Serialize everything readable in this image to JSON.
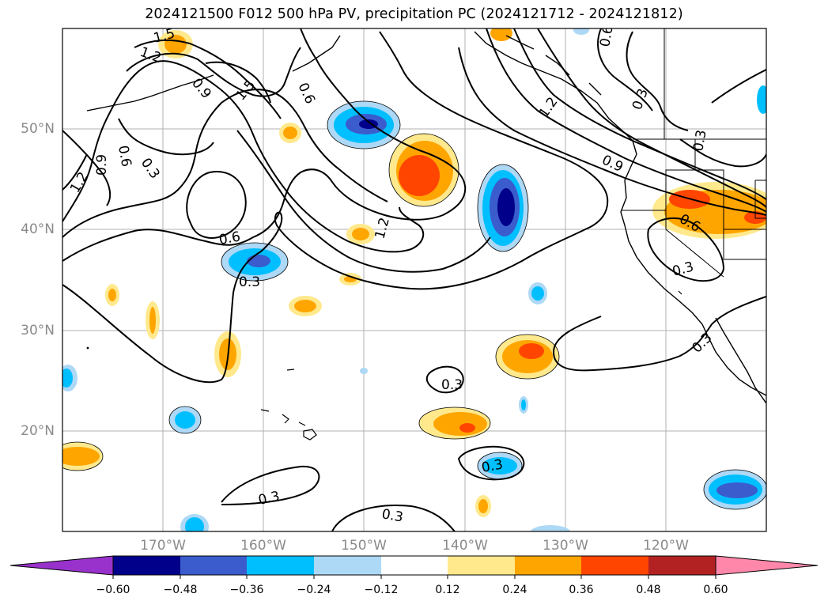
{
  "title": "2024121500 F012 500 hPa PV, precipitation PC (2024121712 - 2024121812)",
  "map": {
    "lon_labels": [
      "170°W",
      "160°W",
      "150°W",
      "140°W",
      "130°W",
      "120°W"
    ],
    "lat_labels": [
      "50°N",
      "40°N",
      "30°N",
      "20°N"
    ],
    "contour_labels": [
      "1.5",
      "1.2",
      "0.9",
      "1.5",
      "0.6",
      "0.6",
      "0.3",
      "0.9",
      "1.2",
      "0.6",
      "0.3",
      "0.6",
      "0.3",
      "1.2",
      "0.9",
      "0.3",
      "0.6",
      "0.3",
      "0.3",
      "0.3",
      "0.3",
      "0.3",
      "0.3"
    ]
  },
  "colorbar": {
    "labels": [
      "−0.60",
      "−0.48",
      "−0.36",
      "−0.24",
      "−0.12",
      "0.12",
      "0.24",
      "0.36",
      "0.48",
      "0.60"
    ],
    "colors": [
      "#9932cc",
      "#00008b",
      "#3a5ccc",
      "#00bfff",
      "#add8f6",
      "#ffffff",
      "#ffe98c",
      "#ffa500",
      "#ff4500",
      "#b22222",
      "#ff88aa"
    ]
  }
}
